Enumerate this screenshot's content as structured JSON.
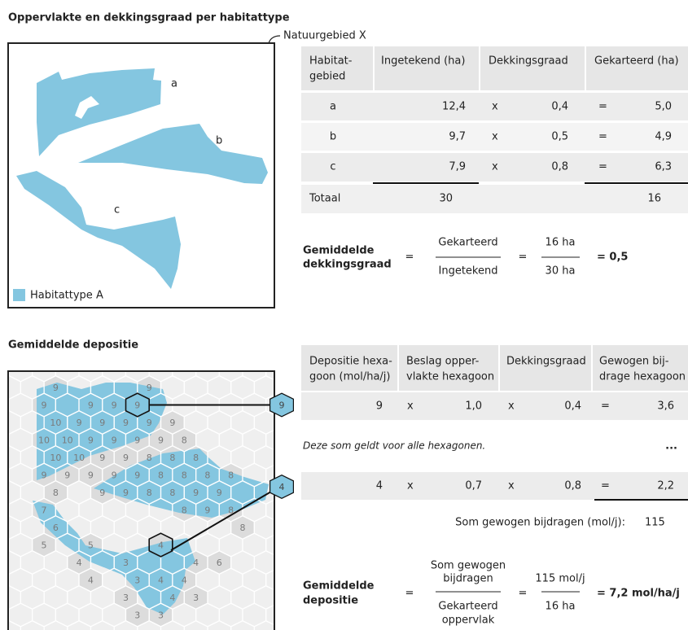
{
  "habitat": {
    "title": "Oppervlakte en dekkingsgraad per habitattype",
    "area_label": "Natuurgebied X",
    "map_labels": [
      "a",
      "b",
      "c"
    ],
    "legend": "Habitattype A",
    "table": {
      "headers": [
        [
          "Habitat-",
          "gebied"
        ],
        [
          "Ingetekend (ha)"
        ],
        [
          "Dekkingsgraad"
        ],
        [
          "Gekarteerd (ha)"
        ]
      ],
      "rows": [
        [
          "a",
          "12,4",
          "x",
          "0,4",
          "=",
          "5,0"
        ],
        [
          "b",
          "9,7",
          "x",
          "0,5",
          "=",
          "4,9"
        ],
        [
          "c",
          "7,9",
          "x",
          "0,8",
          "=",
          "6,3"
        ]
      ],
      "total": [
        "Totaal",
        "30",
        "16"
      ]
    },
    "formula": {
      "label": [
        "Gemiddelde",
        "dekkingsgraad"
      ],
      "operators": [
        "=",
        "="
      ],
      "fraction1": [
        "Gekarteerd",
        "Ingetekend"
      ],
      "fraction2": [
        "16 ha",
        "30 ha"
      ],
      "result": "= 0,5"
    }
  },
  "depositie": {
    "title": "Gemiddelde depositie",
    "hex_grid": [
      [
        null,
        9,
        null,
        null,
        null,
        9,
        null,
        null,
        null,
        null,
        null
      ],
      [
        null,
        9,
        null,
        9,
        9,
        9,
        null,
        null,
        null,
        null,
        null
      ],
      [
        null,
        10,
        9,
        9,
        9,
        9,
        9,
        null,
        null,
        null,
        null
      ],
      [
        null,
        10,
        10,
        9,
        9,
        9,
        9,
        8,
        null,
        null,
        null
      ],
      [
        null,
        10,
        10,
        9,
        9,
        8,
        8,
        8,
        null,
        null,
        null
      ],
      [
        null,
        9,
        9,
        9,
        9,
        9,
        8,
        8,
        8,
        8,
        null
      ],
      [
        null,
        8,
        null,
        9,
        9,
        8,
        8,
        9,
        9,
        null,
        null
      ],
      [
        null,
        7,
        null,
        null,
        null,
        null,
        null,
        8,
        9,
        8,
        null
      ],
      [
        null,
        6,
        null,
        null,
        null,
        null,
        null,
        null,
        null,
        8,
        null
      ],
      [
        null,
        5,
        null,
        5,
        null,
        null,
        4,
        null,
        null,
        null,
        null
      ],
      [
        null,
        null,
        4,
        null,
        3,
        null,
        null,
        4,
        6,
        null,
        null
      ],
      [
        null,
        null,
        null,
        4,
        null,
        3,
        4,
        4,
        null,
        null,
        null
      ],
      [
        null,
        null,
        null,
        null,
        3,
        null,
        4,
        3,
        null,
        null,
        null
      ],
      [
        null,
        null,
        null,
        null,
        null,
        3,
        3,
        null,
        null,
        null,
        null
      ]
    ],
    "callouts": [
      "9",
      "4"
    ],
    "table": {
      "headers": [
        [
          "Depositie hexa-",
          "goon (mol/ha/j)"
        ],
        [
          "Beslag opper-",
          "vlakte hexagoon"
        ],
        [
          "Dekkingsgraad"
        ],
        [
          "Gewogen bij-",
          "drage hexagoon"
        ]
      ],
      "rows": [
        [
          "9",
          "x",
          "1,0",
          "x",
          "0,4",
          "=",
          "3,6"
        ],
        [
          "4",
          "x",
          "0,7",
          "x",
          "0,8",
          "=",
          "2,2"
        ]
      ],
      "note": "Deze som geldt voor alle hexagonen.",
      "ellipsis": "...",
      "sum_label": "Som gewogen bijdragen (mol/j):",
      "sum_value": "115"
    },
    "formula": {
      "label": [
        "Gemiddelde",
        "depositie"
      ],
      "operators": [
        "=",
        "="
      ],
      "numerator1": [
        "Som gewogen",
        "bijdragen"
      ],
      "denominator1": [
        "Gekarteerd",
        "oppervlak"
      ],
      "fraction2": [
        "115 mol/j",
        "16 ha"
      ],
      "result": "= 7,2 mol/ha/j"
    }
  }
}
